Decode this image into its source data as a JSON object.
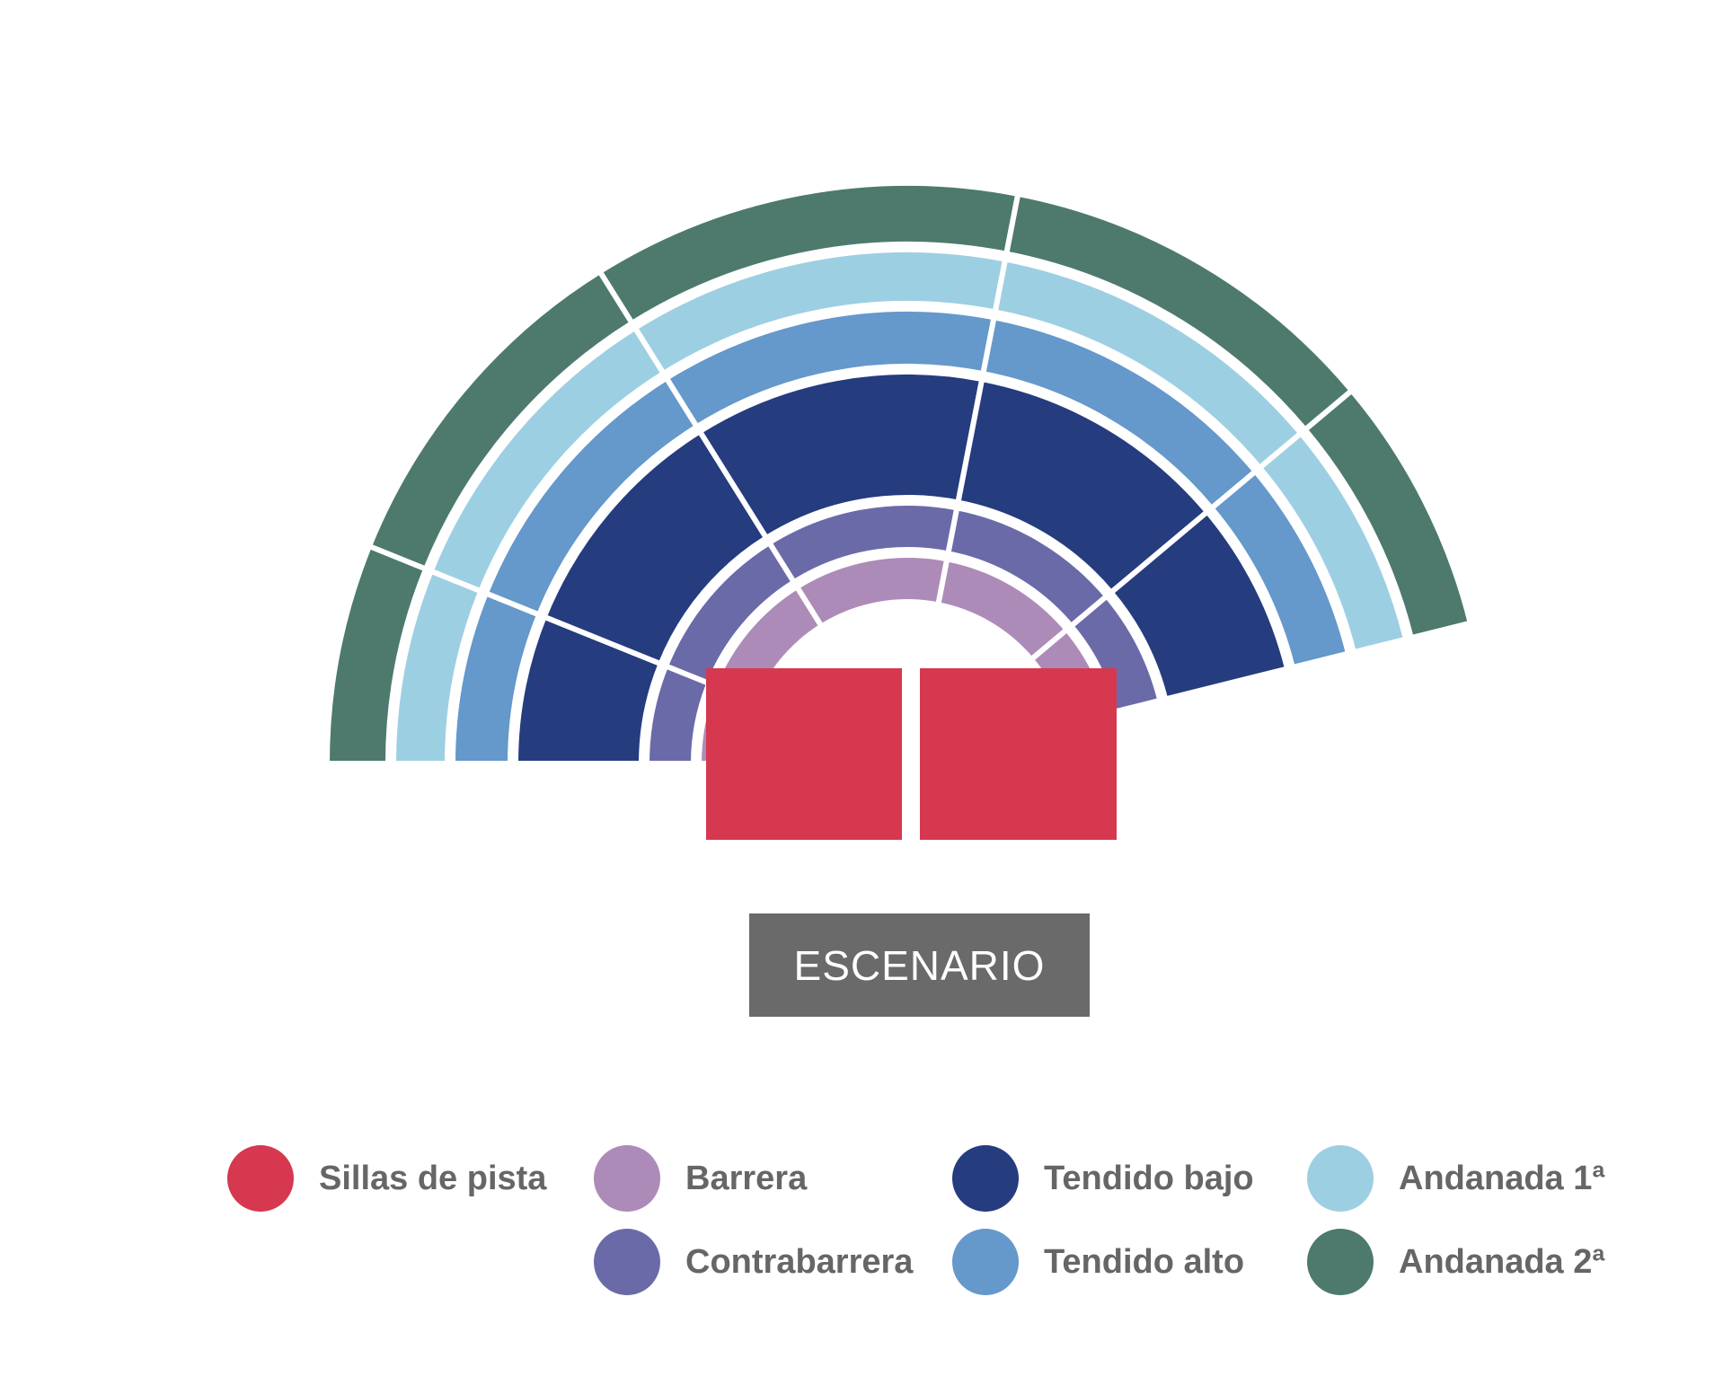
{
  "stage": {
    "label": "ESCENARIO",
    "color": "#6a6a6a"
  },
  "colors": {
    "sillas_de_pista": "#d6384f",
    "barrera": "#ad8bb8",
    "contrabarrera": "#6b6aa8",
    "tendido_bajo": "#253c7e",
    "tendido_alto": "#6598cb",
    "andanada_1": "#9dcfe3",
    "andanada_2": "#4d7a6d"
  },
  "legend": [
    {
      "key": "sillas_de_pista",
      "label": "Sillas de pista",
      "color": "#d6384f"
    },
    {
      "key": "barrera",
      "label": "Barrera",
      "color": "#ad8bb8"
    },
    {
      "key": "tendido_bajo",
      "label": "Tendido bajo",
      "color": "#253c7e"
    },
    {
      "key": "andanada_1",
      "label": "Andanada 1ª",
      "color": "#9dcfe3"
    },
    {
      "key": "contrabarrera",
      "label": "Contrabarrera",
      "color": "#6b6aa8"
    },
    {
      "key": "tendido_alto",
      "label": "Tendido alto",
      "color": "#6598cb"
    },
    {
      "key": "andanada_2",
      "label": "Andanada 2ª",
      "color": "#4d7a6d"
    }
  ]
}
